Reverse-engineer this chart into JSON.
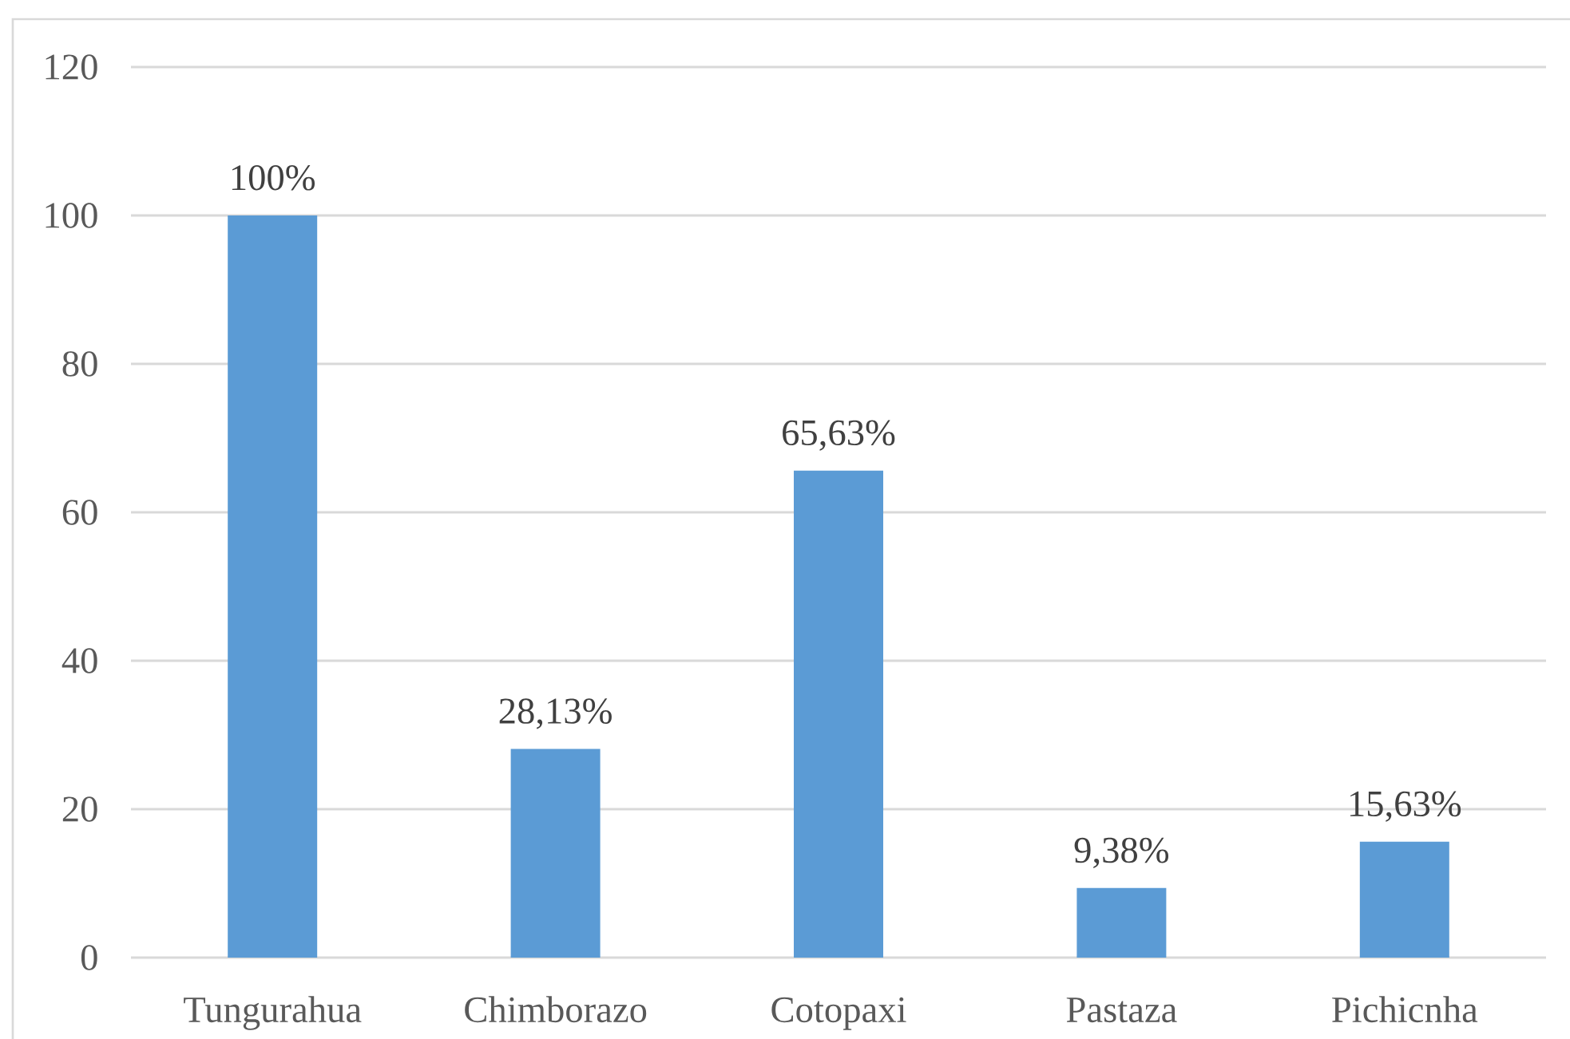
{
  "chart_data": {
    "type": "bar",
    "categories": [
      "Tungurahua",
      "Chimborazo",
      "Cotopaxi",
      "Pastaza",
      "Pichicnha"
    ],
    "values": [
      100,
      28.13,
      65.63,
      9.38,
      15.63
    ],
    "value_labels": [
      "100%",
      "28,13%",
      "65,63%",
      "9,38%",
      "15,63%"
    ],
    "color": "#5b9bd5",
    "ylim": [
      0,
      120
    ],
    "yticks": [
      0,
      20,
      40,
      60,
      80,
      100,
      120
    ],
    "grid": "y"
  }
}
